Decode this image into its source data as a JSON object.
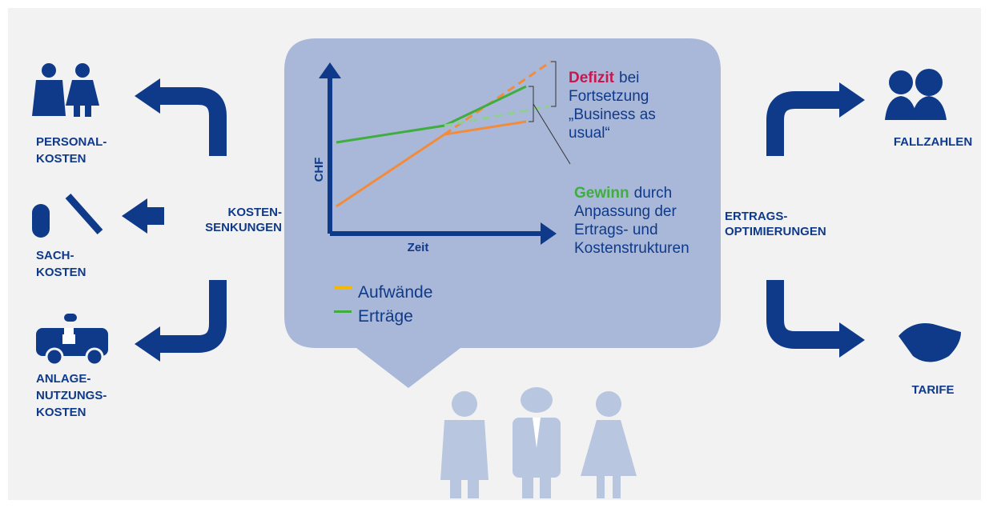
{
  "left": {
    "center": [
      "KOSTEN-",
      "SENKUNGEN"
    ],
    "items": [
      [
        "PERSONAL-",
        "KOSTEN"
      ],
      [
        "SACH-",
        "KOSTEN"
      ],
      [
        "ANLAGE-",
        "NUTZUNGS-",
        "KOSTEN"
      ]
    ]
  },
  "right": {
    "center": [
      "ERTRAGS-",
      "OPTIMIERUNGEN"
    ],
    "items": [
      [
        "FALLZAHLEN"
      ],
      [
        "TARIFE"
      ]
    ]
  },
  "chart": {
    "y_label": "CHF",
    "x_label": "Zeit",
    "legend": [
      {
        "name": "Aufwände",
        "color": "#f28c3c"
      },
      {
        "name": "Erträge",
        "color": "#3fae3f"
      }
    ]
  },
  "deficit": {
    "highlight": "Defizit",
    "rest": "bei",
    "lines": [
      "Fortsetzung",
      "„Business as",
      "usual“"
    ]
  },
  "gain": {
    "highlight": "Gewinn",
    "rest": "durch",
    "lines": [
      "Anpassung der",
      "Ertrags- und",
      "Kostenstrukturen"
    ]
  }
}
